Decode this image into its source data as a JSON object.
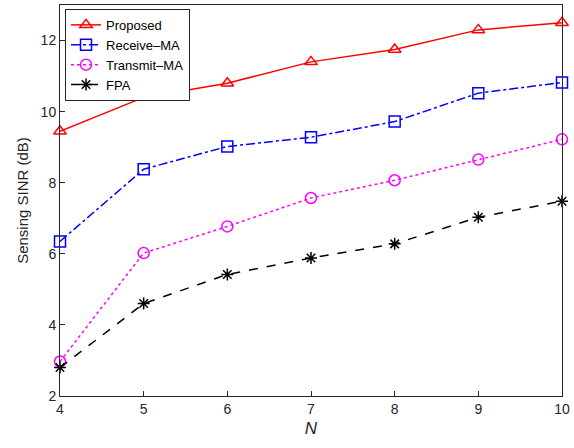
{
  "chart_data": {
    "type": "line",
    "x_label": "N",
    "y_label": "Sensing SINR (dB)",
    "x": [
      4,
      5,
      6,
      7,
      8,
      9,
      10
    ],
    "xlim": [
      4,
      10
    ],
    "xticks": [
      4,
      5,
      6,
      7,
      8,
      9,
      10
    ],
    "ylim": [
      2,
      13
    ],
    "yticks": [
      2,
      4,
      6,
      8,
      10,
      12
    ],
    "grid": false,
    "legend": "upper left",
    "series": [
      {
        "name": "Proposed",
        "color": "#ff0000",
        "marker": "triangle",
        "line_style": "solid",
        "values": [
          9.45,
          10.4,
          10.8,
          11.4,
          11.75,
          12.3,
          12.5
        ]
      },
      {
        "name": "Receive–MA",
        "color": "#0000ff",
        "marker": "square",
        "line_style": "dashdot",
        "values": [
          6.35,
          8.38,
          9.02,
          9.28,
          9.72,
          10.52,
          10.82
        ]
      },
      {
        "name": "Transmit–MA",
        "color": "#ff00ff",
        "marker": "circle",
        "line_style": "dotted",
        "values": [
          2.97,
          6.02,
          6.77,
          7.57,
          8.07,
          8.65,
          9.22
        ]
      },
      {
        "name": "FPA",
        "color": "#000000",
        "marker": "asterisk",
        "line_style": "dashed",
        "values": [
          2.8,
          4.6,
          5.42,
          5.88,
          6.28,
          7.03,
          7.48
        ]
      }
    ]
  }
}
